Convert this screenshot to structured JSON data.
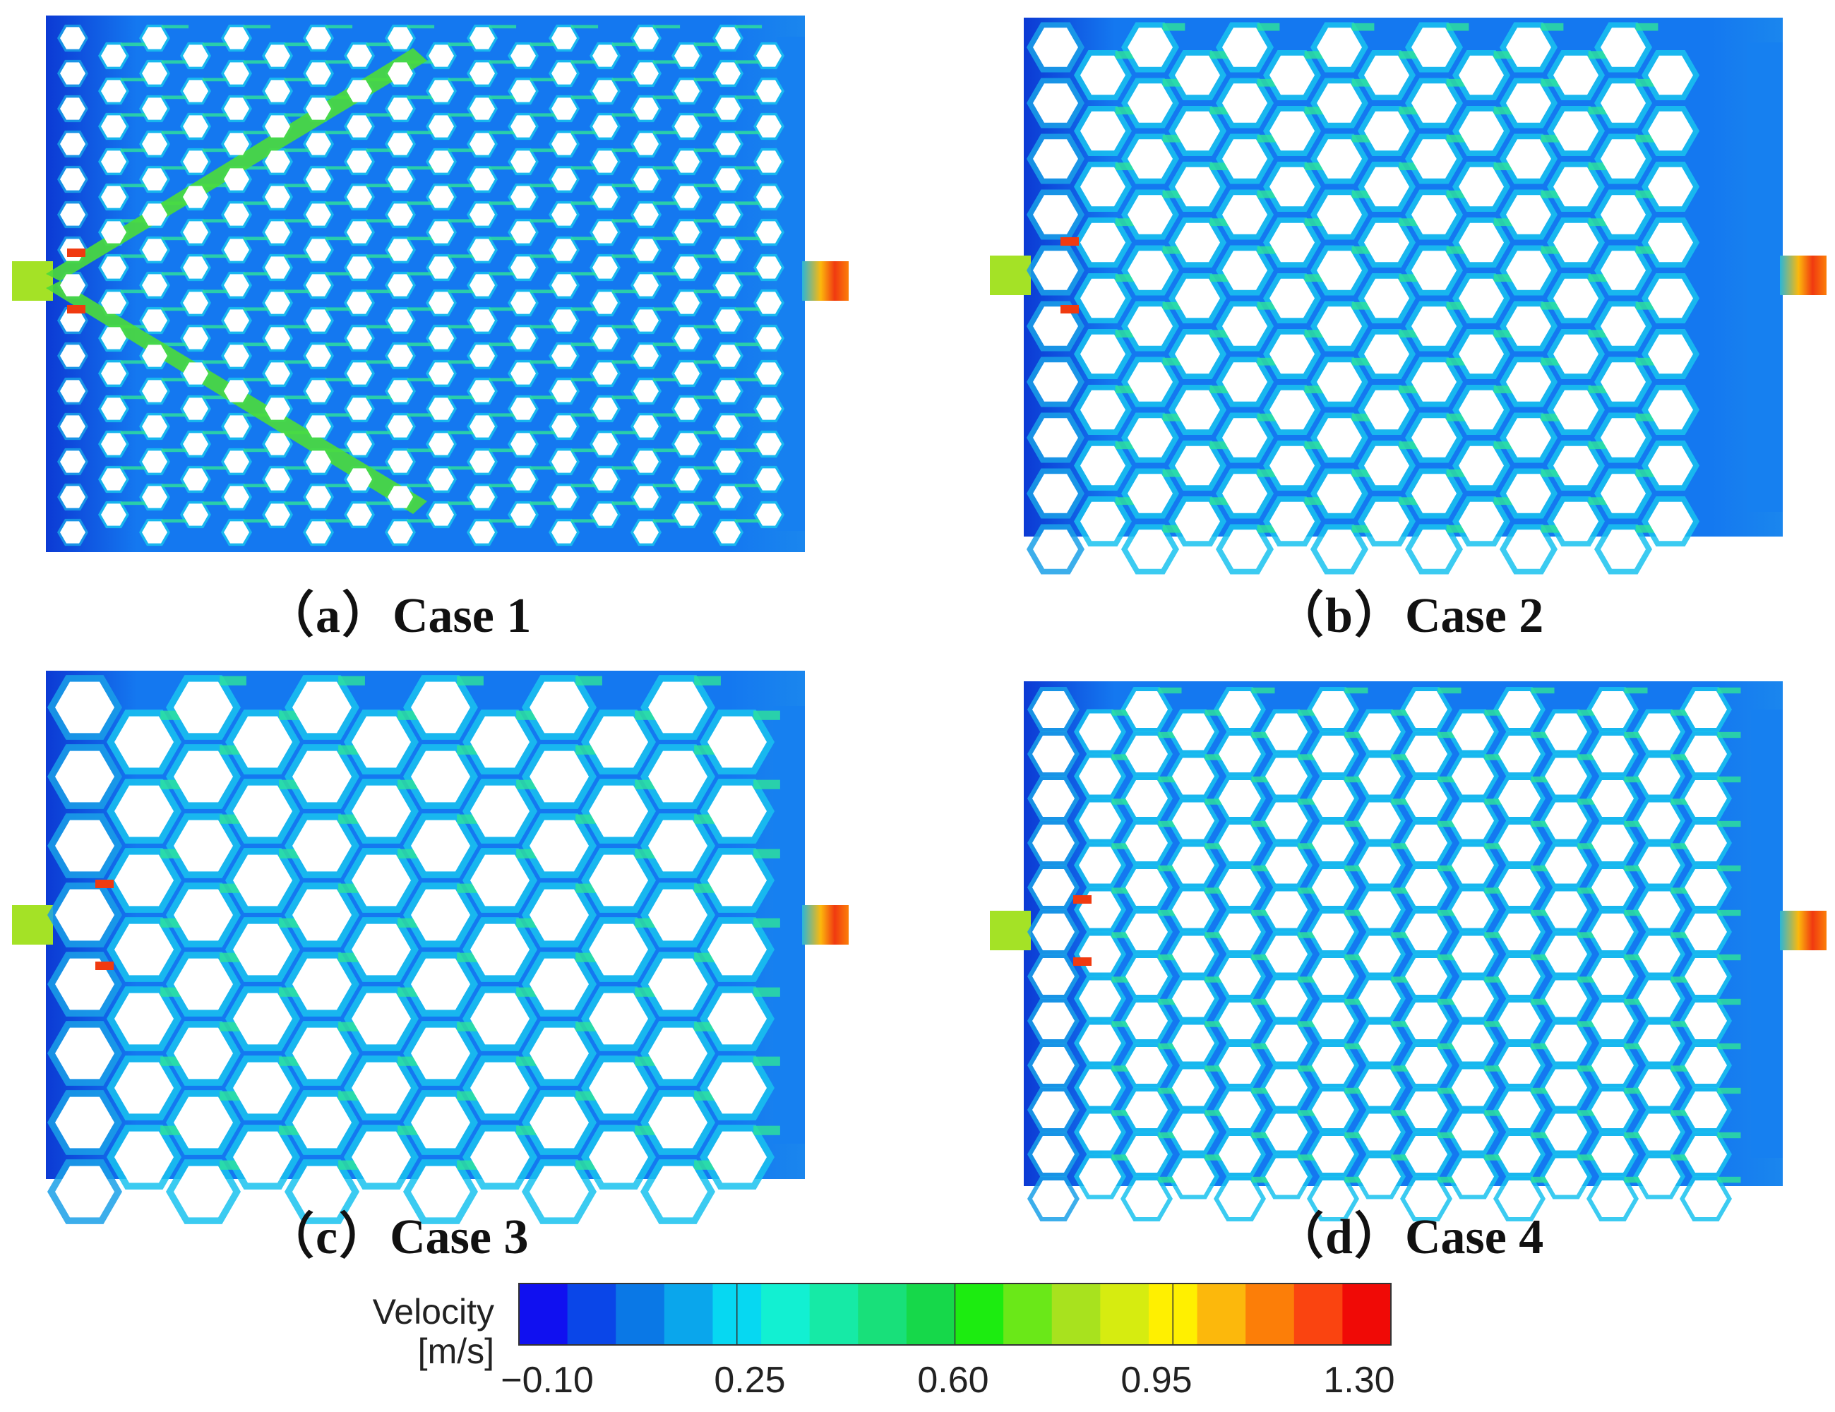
{
  "panels": [
    {
      "id": "a",
      "label": "（a）",
      "case": "Case 1"
    },
    {
      "id": "b",
      "label": "（b）",
      "case": "Case 2"
    },
    {
      "id": "c",
      "label": "（c）",
      "case": "Case 3"
    },
    {
      "id": "d",
      "label": "（d）",
      "case": "Case 4"
    }
  ],
  "legend": {
    "title_line1": "Velocity",
    "title_line2": "[m/s]",
    "ticks": [
      "−0.10",
      "0.25",
      "0.60",
      "0.95",
      "1.30"
    ],
    "colors": [
      "#1010f0",
      "#0a46e8",
      "#0a78e6",
      "#0aa6ec",
      "#06d8f2",
      "#12f0d2",
      "#16eaa6",
      "#18e07a",
      "#16d84a",
      "#1cec10",
      "#6ae818",
      "#a8e21e",
      "#d6ec10",
      "#fff000",
      "#fcb80c",
      "#fc7e08",
      "#fa4410",
      "#f00a06"
    ]
  },
  "colors": {
    "fluid_base": "#1478f0",
    "fluid_low": "#0c3ad4",
    "channel_mid": "#19c2ee",
    "channel_fast": "#2ee39a",
    "jet": "#4bdc3a",
    "outlet_hot": "#f03a10",
    "hole": "#ffffff"
  }
}
